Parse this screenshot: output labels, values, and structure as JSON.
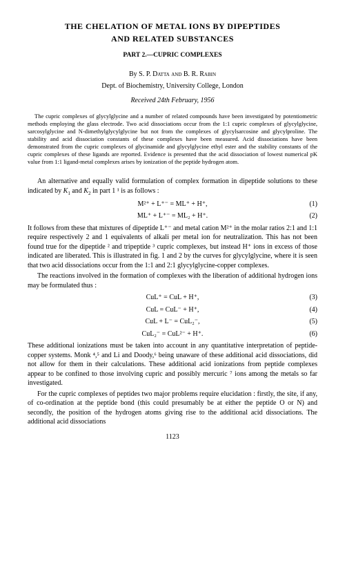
{
  "title_line1": "THE CHELATION OF METAL IONS BY DIPEPTIDES",
  "title_line2": "AND RELATED SUBSTANCES",
  "subtitle": "PART 2.—CUPRIC COMPLEXES",
  "authors_by": "By ",
  "authors_names": "S. P. Datta and B. R. Rabin",
  "affiliation": "Dept. of Biochemistry, University College, London",
  "received": "Received 24th February, 1956",
  "abstract": "The cupric complexes of glycylglycine and a number of related compounds have been investigated by potentiometric methods employing the glass electrode. Two acid dissociations occur from the 1:1 cupric complexes of glycylglycine, sarcosylglycine and N-dimethylglycylglycine but not from the complexes of glycylsarcosine and glycylproline. The stability and acid dissociation constants of these complexes have been measured. Acid dissociations have been demonstrated from the cupric complexes of glycinamide and glycylglycine ethyl ester and the stability constants of the cupric complexes of these ligands are reported. Evidence is presented that the acid dissociation of lowest numerical pK value from 1:1 ligand-metal complexes arises by ionization of the peptide hydrogen atom.",
  "para1_pre": "An alternative and equally valid formulation of complex formation in dipeptide solutions to these indicated by ",
  "para1_k1": "K",
  "para1_mid1": " and ",
  "para1_k2": "K",
  "para1_post": " in part 1 ¹ is as follows :",
  "eq1_lhs": "M²⁺ + L⁺⁻ = ML⁺ + H⁺,",
  "eq1_num": "(1)",
  "eq2_lhs": "ML⁺ + L⁺⁻ = ML₂ + H⁺.",
  "eq2_num": "(2)",
  "para2": "It follows from these that mixtures of dipeptide L⁺⁻ and metal cation M²⁺ in the molar ratios 2:1 and 1:1 require respectively 2 and 1 equivalents of alkali per metal ion for neutralization. This has not been found true for the dipeptide ² and tripeptide ³ cupric complexes, but instead H⁺ ions in excess of those indicated are liberated. This is illustrated in fig. 1 and 2 by the curves for glycylglycine, where it is seen that two acid dissociations occur from the 1:1 and 2:1 glycylglycine-copper complexes.",
  "para3": "The reactions involved in the formation of complexes with the liberation of additional hydrogen ions may be formulated thus :",
  "eq3_lhs": "CuL⁺ = CuL + H⁺,",
  "eq3_num": "(3)",
  "eq4_lhs": "CuL = CuL⁻ + H⁺,",
  "eq4_num": "(4)",
  "eq5_lhs": "CuL + L⁻ = CuL₂⁻,",
  "eq5_num": "(5)",
  "eq6_lhs": "CuL₂⁻ = CuL²⁻ + H⁺.",
  "eq6_num": "(6)",
  "para4": "These additional ionizations must be taken into account in any quantitative interpretation of peptide-copper systems. Monk ⁴,⁵ and Li and Doody,⁶ being unaware of these additional acid dissociations, did not allow for them in their calculations. These additional acid ionizations from peptide complexes appear to be confined to those involving cupric and possibly mercuric ⁷ ions among the metals so far investigated.",
  "para5": "For the cupric complexes of peptides two major problems require elucidation : firstly, the site, if any, of co-ordination at the peptide bond (this could presumably be at either the peptide O or N) and secondly, the position of the hydrogen atoms giving rise to the additional acid dissociations. The additional acid dissociations",
  "page_number": "1123"
}
